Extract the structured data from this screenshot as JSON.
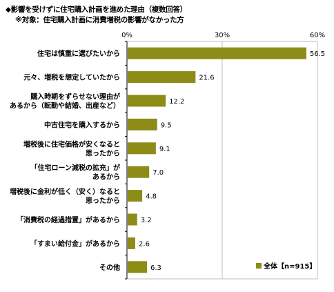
{
  "title_line1": "◆影響を受けずに住宅購入計画を進めた理由（複数回答）",
  "title_line2": "※対象：住宅購入計画に消費増税の影響がなかった方",
  "chart_data": {
    "type": "bar",
    "orientation": "horizontal",
    "categories": [
      [
        "住宅は慎重に選びたいから"
      ],
      [
        "元々、増税を想定していたから"
      ],
      [
        "購入時期をずらせない理由が",
        "あるから（転勤や結婚、出産など）"
      ],
      [
        "中古住宅を購入するから"
      ],
      [
        "増税後に住宅価格が安くなると",
        "思ったから"
      ],
      [
        "「住宅ローン減税の拡充」が",
        "あるから"
      ],
      [
        "増税後に金利が低く（安く）なると",
        "思ったから"
      ],
      [
        "「消費税の経過措置」があるから"
      ],
      [
        "「すまい給付金」があるから"
      ],
      [
        "その他"
      ]
    ],
    "series": [
      {
        "name": "全体【n=915】",
        "values": [
          56.5,
          21.6,
          12.2,
          9.5,
          9.1,
          7.0,
          4.8,
          3.2,
          2.6,
          6.3
        ]
      }
    ],
    "value_labels": [
      "56.5",
      "21.6",
      "12.2",
      "9.5",
      "9.1",
      "7.0",
      "4.8",
      "3.2",
      "2.6",
      "6.3"
    ],
    "xlim": [
      0,
      60
    ],
    "xticks": [
      "0%",
      "30%",
      "60%"
    ],
    "tick_values": [
      0,
      30,
      60
    ],
    "legend_position": "bottom-right",
    "bar_color": "#8c8c17",
    "grid": true
  }
}
